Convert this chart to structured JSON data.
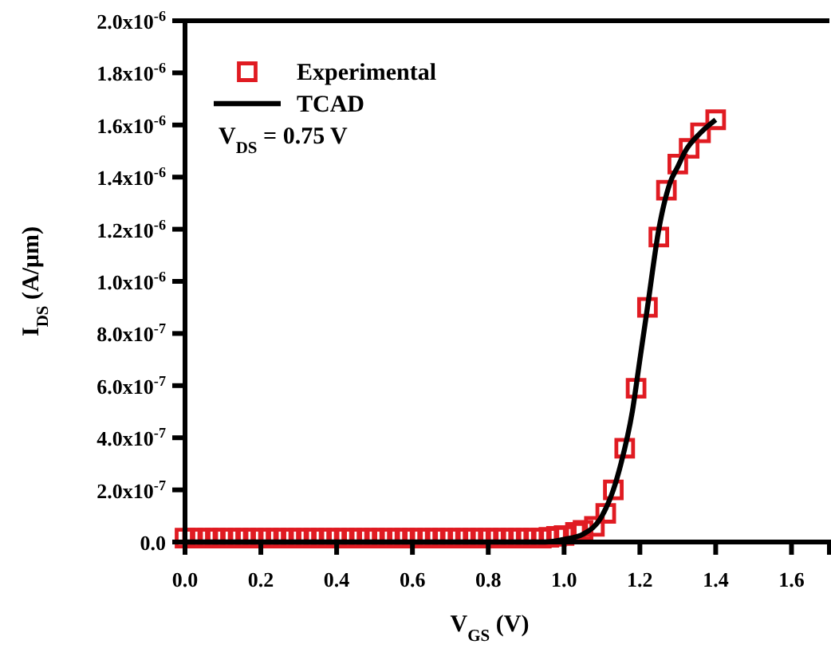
{
  "chart_data": {
    "type": "line",
    "xlabel": "V$_{GS}$ (V)",
    "ylabel": "I$_{DS}$ (A/μm)",
    "xlim": [
      0,
      1.7
    ],
    "ylim": [
      0,
      2e-06
    ],
    "xticks": [
      {
        "value": 0,
        "label": "0.0"
      },
      {
        "value": 0.2,
        "label": "0.2"
      },
      {
        "value": 0.4,
        "label": "0.4"
      },
      {
        "value": 0.6,
        "label": "0.6"
      },
      {
        "value": 0.8,
        "label": "0.8"
      },
      {
        "value": 1.0,
        "label": "1.0"
      },
      {
        "value": 1.2,
        "label": "1.2"
      },
      {
        "value": 1.4,
        "label": "1.4"
      },
      {
        "value": 1.6,
        "label": "1.6"
      }
    ],
    "yticks": [
      {
        "value": 0,
        "label": "0.0"
      },
      {
        "value": 2e-07,
        "label": "2.0x10$^{-7}$"
      },
      {
        "value": 4e-07,
        "label": "4.0x10$^{-7}$"
      },
      {
        "value": 6e-07,
        "label": "6.0x10$^{-7}$"
      },
      {
        "value": 8e-07,
        "label": "8.0x10$^{-7}$"
      },
      {
        "value": 1e-06,
        "label": "1.0x10$^{-6}$"
      },
      {
        "value": 1.2e-06,
        "label": "1.2x10$^{-6}$"
      },
      {
        "value": 1.4e-06,
        "label": "1.4x10$^{-6}$"
      },
      {
        "value": 1.6e-06,
        "label": "1.6x10$^{-6}$"
      },
      {
        "value": 1.8e-06,
        "label": "1.8x10$^{-6}$"
      },
      {
        "value": 2e-06,
        "label": "2.0x10$^{-6}$"
      }
    ],
    "grid": false,
    "legend": "top left",
    "annotations": [
      "V$_{DS}$ = 0.75 V"
    ],
    "series": [
      {
        "name": "Experimental",
        "type": "scatter",
        "marker": "square",
        "color": "#e01b22",
        "x": [
          0,
          0.02,
          0.04,
          0.06,
          0.08,
          0.1,
          0.12,
          0.14,
          0.16,
          0.18,
          0.2,
          0.22,
          0.24,
          0.26,
          0.28,
          0.3,
          0.32,
          0.34,
          0.36,
          0.38,
          0.4,
          0.42,
          0.44,
          0.46,
          0.48,
          0.5,
          0.52,
          0.54,
          0.56,
          0.58,
          0.6,
          0.62,
          0.64,
          0.66,
          0.68,
          0.7,
          0.72,
          0.74,
          0.76,
          0.78,
          0.8,
          0.82,
          0.84,
          0.86,
          0.88,
          0.9,
          0.92,
          0.94,
          0.96,
          0.98,
          1.0,
          1.03,
          1.05,
          1.08,
          1.11,
          1.13,
          1.16,
          1.19,
          1.22,
          1.25,
          1.27,
          1.3,
          1.33,
          1.36,
          1.4
        ],
        "values": [
          1.5e-08,
          1.5e-08,
          1.5e-08,
          1.5e-08,
          1.5e-08,
          1.5e-08,
          1.5e-08,
          1.5e-08,
          1.5e-08,
          1.5e-08,
          1.5e-08,
          1.5e-08,
          1.5e-08,
          1.5e-08,
          1.5e-08,
          1.5e-08,
          1.5e-08,
          1.5e-08,
          1.5e-08,
          1.5e-08,
          1.5e-08,
          1.5e-08,
          1.5e-08,
          1.5e-08,
          1.5e-08,
          1.5e-08,
          1.5e-08,
          1.5e-08,
          1.5e-08,
          1.5e-08,
          1.5e-08,
          1.5e-08,
          1.5e-08,
          1.5e-08,
          1.5e-08,
          1.5e-08,
          1.5e-08,
          1.5e-08,
          1.5e-08,
          1.5e-08,
          1.5e-08,
          1.5e-08,
          1.5e-08,
          1.5e-08,
          1.5e-08,
          1.5e-08,
          1.5e-08,
          1.5e-08,
          1.8e-08,
          2.2e-08,
          2.5e-08,
          3.7e-08,
          4.5e-08,
          6e-08,
          1.1e-07,
          2e-07,
          3.6e-07,
          5.9e-07,
          9e-07,
          1.17e-06,
          1.35e-06,
          1.45e-06,
          1.51e-06,
          1.57e-06,
          1.62e-06
        ]
      },
      {
        "name": "TCAD",
        "marker": "none",
        "color": "#000000",
        "x": [
          0,
          0.9,
          0.95,
          1.0,
          1.05,
          1.1,
          1.13,
          1.15,
          1.18,
          1.2,
          1.22,
          1.25,
          1.28,
          1.3,
          1.32,
          1.36,
          1.4
        ],
        "values": [
          0,
          0,
          0,
          1e-08,
          3e-08,
          1e-07,
          2e-07,
          3e-07,
          5e-07,
          7e-07,
          9e-07,
          1.2e-06,
          1.38e-06,
          1.44e-06,
          1.5e-06,
          1.57e-06,
          1.62e-06
        ]
      }
    ]
  }
}
